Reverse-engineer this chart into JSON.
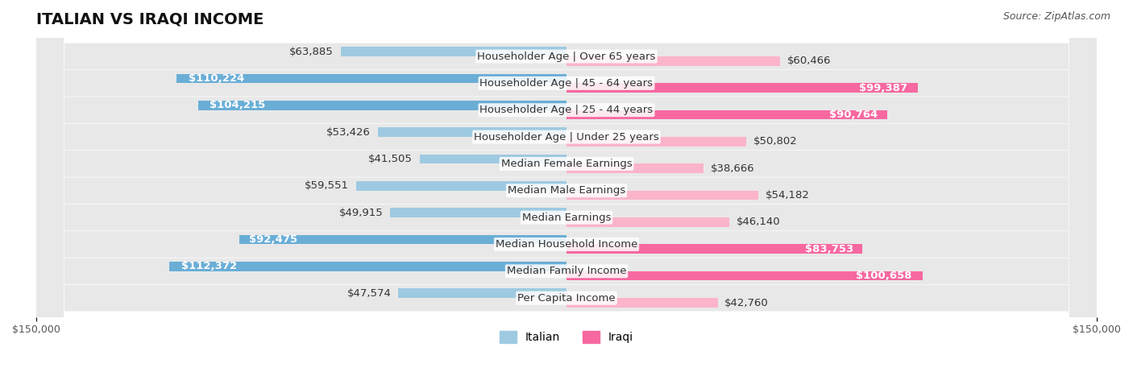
{
  "title": "ITALIAN VS IRAQI INCOME",
  "source": "Source: ZipAtlas.com",
  "categories": [
    "Per Capita Income",
    "Median Family Income",
    "Median Household Income",
    "Median Earnings",
    "Median Male Earnings",
    "Median Female Earnings",
    "Householder Age | Under 25 years",
    "Householder Age | 25 - 44 years",
    "Householder Age | 45 - 64 years",
    "Householder Age | Over 65 years"
  ],
  "italian_values": [
    47574,
    112372,
    92475,
    49915,
    59551,
    41505,
    53426,
    104215,
    110224,
    63885
  ],
  "iraqi_values": [
    42760,
    100658,
    83753,
    46140,
    54182,
    38666,
    50802,
    90764,
    99387,
    60466
  ],
  "italian_labels": [
    "$47,574",
    "$112,372",
    "$92,475",
    "$49,915",
    "$59,551",
    "$41,505",
    "$53,426",
    "$104,215",
    "$110,224",
    "$63,885"
  ],
  "iraqi_labels": [
    "$42,760",
    "$100,658",
    "$83,753",
    "$46,140",
    "$54,182",
    "$38,666",
    "$50,802",
    "$90,764",
    "$99,387",
    "$60,466"
  ],
  "italian_color_dark": "#6aaed6",
  "italian_color_light": "#9ecae1",
  "iraqi_color_dark": "#f768a1",
  "iraqi_color_light": "#fbb4c9",
  "max_value": 150000,
  "background_color": "#ffffff",
  "bar_bg_color": "#e8e8e8",
  "title_fontsize": 14,
  "label_fontsize": 9.5,
  "axis_label_fontsize": 9,
  "legend_fontsize": 10,
  "source_fontsize": 9
}
